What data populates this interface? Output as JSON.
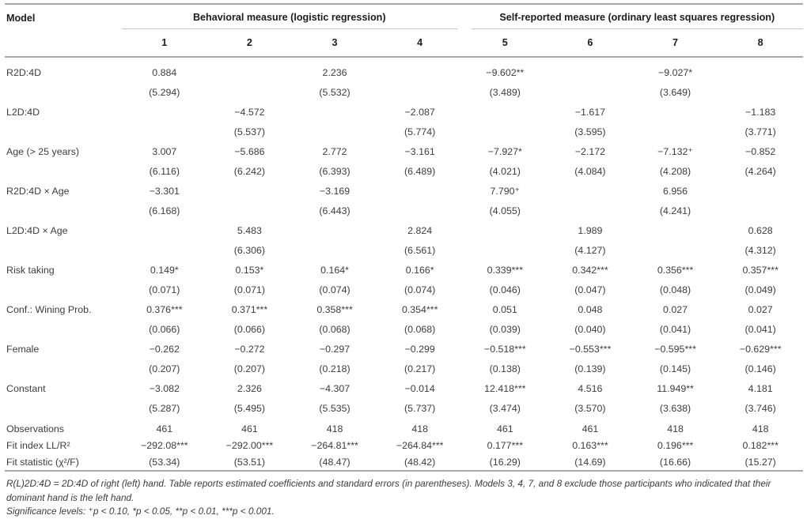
{
  "table": {
    "corner_label": "Model",
    "groups": [
      {
        "label": "Behavioral measure (logistic regression)",
        "columns": [
          "1",
          "2",
          "3",
          "4"
        ]
      },
      {
        "label": "Self-reported measure (ordinary least squares regression)",
        "columns": [
          "5",
          "6",
          "7",
          "8"
        ]
      }
    ],
    "rows": [
      {
        "label": "R2D:4D",
        "coef": [
          "0.884",
          "",
          "2.236",
          "",
          "−9.602**",
          "",
          "−9.027*",
          ""
        ],
        "se": [
          "(5.294)",
          "",
          "(5.532)",
          "",
          "(3.489)",
          "",
          "(3.649)",
          ""
        ]
      },
      {
        "label": "L2D:4D",
        "coef": [
          "",
          "−4.572",
          "",
          "−2.087",
          "",
          "−1.617",
          "",
          "−1.183"
        ],
        "se": [
          "",
          "(5.537)",
          "",
          "(5.774)",
          "",
          "(3.595)",
          "",
          "(3.771)"
        ]
      },
      {
        "label": "Age (> 25 years)",
        "coef": [
          "3.007",
          "−5.686",
          "2.772",
          "−3.161",
          "−7.927*",
          "−2.172",
          "−7.132⁺",
          "−0.852"
        ],
        "se": [
          "(6.116)",
          "(6.242)",
          "(6.393)",
          "(6.489)",
          "(4.021)",
          "(4.084)",
          "(4.208)",
          "(4.264)"
        ]
      },
      {
        "label": "R2D:4D × Age",
        "coef": [
          "−3.301",
          "",
          "−3.169",
          "",
          "7.790⁺",
          "",
          "6.956",
          ""
        ],
        "se": [
          "(6.168)",
          "",
          "(6.443)",
          "",
          "(4.055)",
          "",
          "(4.241)",
          ""
        ]
      },
      {
        "label": "L2D:4D × Age",
        "coef": [
          "",
          "5.483",
          "",
          "2.824",
          "",
          "1.989",
          "",
          "0.628"
        ],
        "se": [
          "",
          "(6.306)",
          "",
          "(6.561)",
          "",
          "(4.127)",
          "",
          "(4.312)"
        ]
      },
      {
        "label": "Risk taking",
        "coef": [
          "0.149*",
          "0.153*",
          "0.164*",
          "0.166*",
          "0.339***",
          "0.342***",
          "0.356***",
          "0.357***"
        ],
        "se": [
          "(0.071)",
          "(0.071)",
          "(0.074)",
          "(0.074)",
          "(0.046)",
          "(0.047)",
          "(0.048)",
          "(0.049)"
        ]
      },
      {
        "label": "Conf.: Wining Prob.",
        "coef": [
          "0.376***",
          "0.371***",
          "0.358***",
          "0.354***",
          "0.051",
          "0.048",
          "0.027",
          "0.027"
        ],
        "se": [
          "(0.066)",
          "(0.066)",
          "(0.068)",
          "(0.068)",
          "(0.039)",
          "(0.040)",
          "(0.041)",
          "(0.041)"
        ]
      },
      {
        "label": "Female",
        "coef": [
          "−0.262",
          "−0.272",
          "−0.297",
          "−0.299",
          "−0.518***",
          "−0.553***",
          "−0.595***",
          "−0.629***"
        ],
        "se": [
          "(0.207)",
          "(0.207)",
          "(0.218)",
          "(0.217)",
          "(0.138)",
          "(0.139)",
          "(0.145)",
          "(0.146)"
        ]
      },
      {
        "label": "Constant",
        "coef": [
          "−3.082",
          "2.326",
          "−4.307",
          "−0.014",
          "12.418***",
          "4.516",
          "11.949**",
          "4.181"
        ],
        "se": [
          "(5.287)",
          "(5.495)",
          "(5.535)",
          "(5.737)",
          "(3.474)",
          "(3.570)",
          "(3.638)",
          "(3.746)"
        ]
      },
      {
        "label": "Observations",
        "stat": true,
        "coef": [
          "461",
          "461",
          "418",
          "418",
          "461",
          "461",
          "418",
          "418"
        ]
      },
      {
        "label": "Fit index LL/R²",
        "stat": true,
        "coef": [
          "−292.08***",
          "−292.00***",
          "−264.81***",
          "−264.84***",
          "0.177***",
          "0.163***",
          "0.196***",
          "0.182***"
        ]
      },
      {
        "label": "Fit statistic (χ²/F)",
        "stat": true,
        "coef": [
          "(53.34)",
          "(53.51)",
          "(48.47)",
          "(48.42)",
          "(16.29)",
          "(14.69)",
          "(16.66)",
          "(15.27)"
        ]
      }
    ]
  },
  "footnotes": {
    "note": "R(L)2D:4D = 2D:4D of right (left) hand. Table reports estimated coefficients and standard errors (in parentheses). Models 3, 4, 7, and 8 exclude those participants who indicated that their dominant hand is the left hand.",
    "significance": "Significance levels: ⁺p < 0.10, *p < 0.05, **p < 0.01, ***p < 0.001."
  }
}
